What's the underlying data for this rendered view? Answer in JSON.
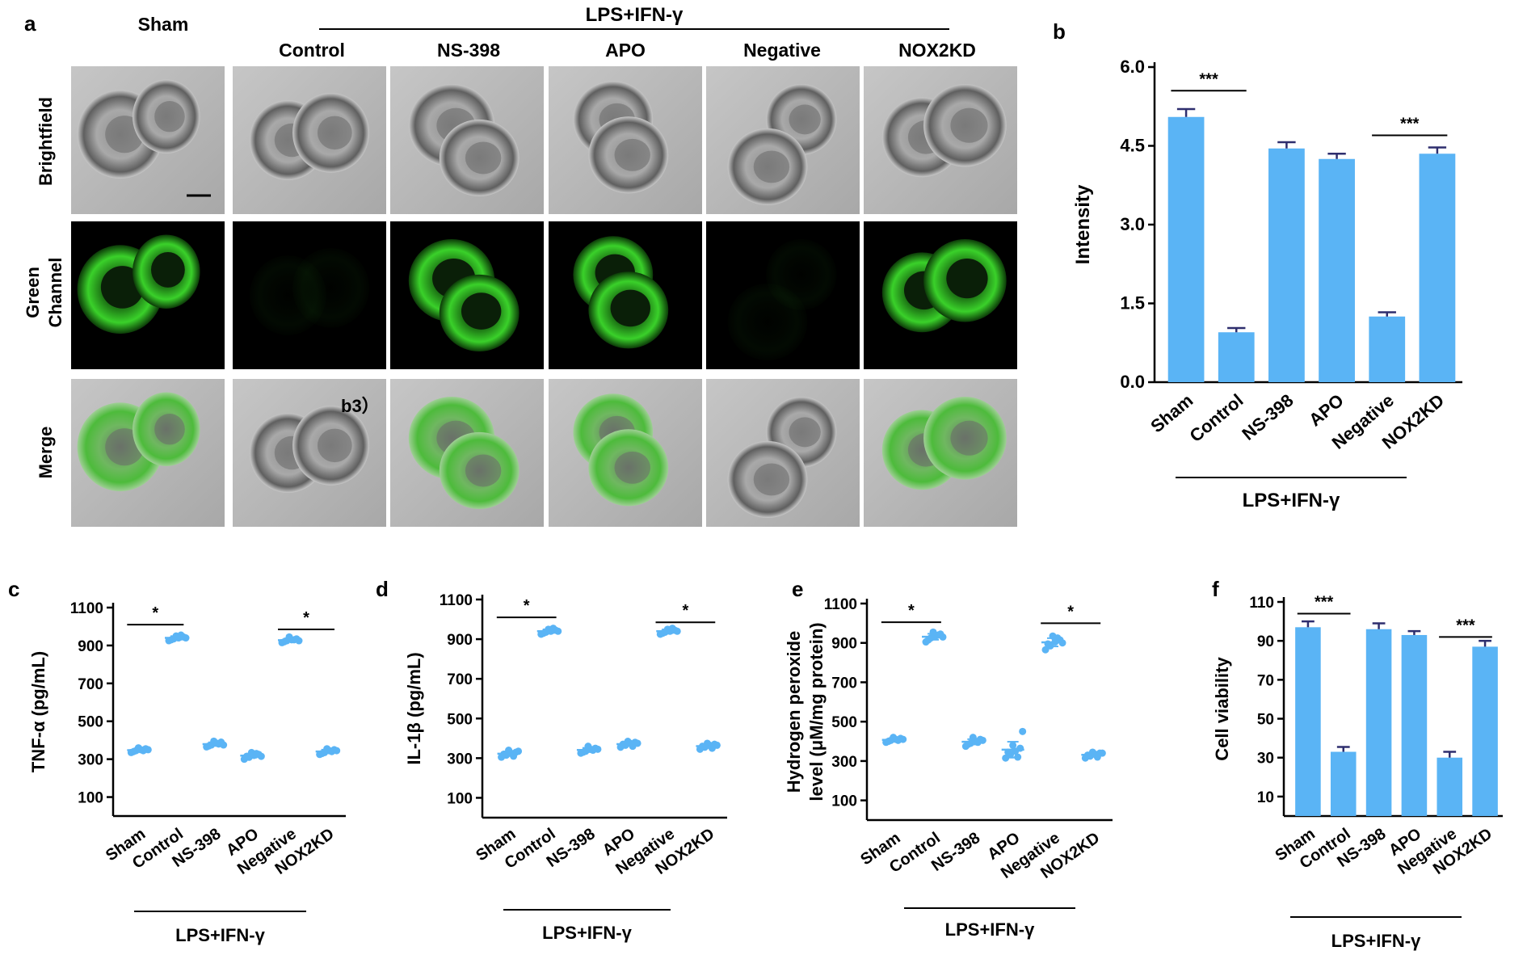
{
  "panel_a": {
    "letter": "a",
    "header": "LPS+IFN-γ",
    "columns": [
      "Sham",
      "Control",
      "NS-398",
      "APO",
      "Negative",
      "NOX2KD"
    ],
    "rows": [
      "Brightfield",
      [
        "Green",
        "Channel"
      ],
      "Merge"
    ],
    "cell_layout": [
      [
        [
          0.32,
          0.46,
          0.28,
          0.3
        ],
        [
          0.62,
          0.34,
          0.22,
          0.25
        ]
      ],
      [
        [
          0.36,
          0.5,
          0.25,
          0.27
        ],
        [
          0.64,
          0.45,
          0.25,
          0.27
        ]
      ],
      [
        [
          0.4,
          0.4,
          0.28,
          0.28
        ],
        [
          0.58,
          0.62,
          0.26,
          0.26
        ]
      ],
      [
        [
          0.42,
          0.36,
          0.26,
          0.26
        ],
        [
          0.52,
          0.6,
          0.26,
          0.26
        ]
      ],
      [
        [
          0.62,
          0.36,
          0.23,
          0.24
        ],
        [
          0.4,
          0.68,
          0.26,
          0.26
        ]
      ],
      [
        [
          0.38,
          0.48,
          0.26,
          0.27
        ],
        [
          0.66,
          0.4,
          0.27,
          0.28
        ]
      ]
    ],
    "green_on": [
      true,
      false,
      true,
      true,
      false,
      true
    ],
    "scale_bar": true,
    "annotation": "b3）",
    "colors": {
      "green": "#3ad12a",
      "bf_bg": "#b8b8b8",
      "dark": "#000000"
    }
  },
  "chart_data": [
    {
      "id": "b",
      "letter": "b",
      "type": "bar",
      "categories": [
        "Sham",
        "Control",
        "NS-398",
        "APO",
        "Negative",
        "NOX2KD"
      ],
      "values": [
        5.05,
        0.95,
        4.45,
        4.25,
        1.25,
        4.35
      ],
      "errors": [
        0.15,
        0.08,
        0.12,
        0.1,
        0.08,
        0.12
      ],
      "ylabel": "Intensity",
      "ylim": [
        0,
        6
      ],
      "yticks": [
        "0.0",
        "1.5",
        "3.0",
        "4.5",
        "6.0"
      ],
      "group_label": "LPS+IFN-γ",
      "sig": [
        {
          "from": 0,
          "to": 1,
          "label": "***",
          "y": 5.55
        },
        {
          "from": 4,
          "to": 5,
          "label": "***",
          "y": 4.7
        }
      ],
      "color": "#5ab4f5"
    },
    {
      "id": "c",
      "letter": "c",
      "type": "scatter",
      "categories": [
        "Sham",
        "Control",
        "NS-398",
        "APO",
        "Negative",
        "NOX2KD"
      ],
      "points": [
        [
          335,
          345,
          350,
          355,
          340,
          360,
          345,
          350
        ],
        [
          925,
          935,
          940,
          945,
          930,
          950,
          955,
          940
        ],
        [
          365,
          375,
          385,
          390,
          370,
          395,
          380,
          375
        ],
        [
          300,
          310,
          320,
          325,
          315,
          335,
          330,
          315
        ],
        [
          915,
          925,
          930,
          935,
          920,
          945,
          930,
          925
        ],
        [
          325,
          335,
          345,
          350,
          330,
          355,
          340,
          345
        ]
      ],
      "ylabel": "TNF-α (pg/mL)",
      "ylim": [
        0,
        1100
      ],
      "yticks": [
        "100",
        "300",
        "500",
        "700",
        "900",
        "1100"
      ],
      "group_label": "LPS+IFN-γ",
      "sig": [
        {
          "from": 0,
          "to": 1,
          "label": "*",
          "y": 1010
        },
        {
          "from": 4,
          "to": 5,
          "label": "*",
          "y": 985
        }
      ],
      "color": "#5ab4f5"
    },
    {
      "id": "d",
      "letter": "d",
      "type": "scatter",
      "categories": [
        "Sham",
        "Control",
        "NS-398",
        "APO",
        "Negative",
        "NOX2KD"
      ],
      "points": [
        [
          305,
          315,
          325,
          330,
          320,
          340,
          310,
          335
        ],
        [
          925,
          935,
          940,
          945,
          930,
          950,
          955,
          940
        ],
        [
          325,
          335,
          345,
          350,
          330,
          360,
          340,
          345
        ],
        [
          355,
          365,
          375,
          380,
          370,
          385,
          360,
          375
        ],
        [
          925,
          935,
          940,
          945,
          930,
          950,
          955,
          940
        ],
        [
          345,
          355,
          365,
          370,
          360,
          375,
          350,
          365
        ]
      ],
      "ylabel": "IL-1β (pg/mL)",
      "ylim": [
        0,
        1100
      ],
      "yticks": [
        "100",
        "300",
        "500",
        "700",
        "900",
        "1100"
      ],
      "group_label": "LPS+IFN-γ",
      "sig": [
        {
          "from": 0,
          "to": 1,
          "label": "*",
          "y": 1010
        },
        {
          "from": 4,
          "to": 5,
          "label": "*",
          "y": 985
        }
      ],
      "color": "#5ab4f5"
    },
    {
      "id": "e",
      "letter": "e",
      "type": "scatter",
      "categories": [
        "Sham",
        "Control",
        "NS-398",
        "APO",
        "Negative",
        "NOX2KD"
      ],
      "points": [
        [
          395,
          405,
          410,
          415,
          400,
          420,
          405,
          410
        ],
        [
          905,
          925,
          935,
          945,
          915,
          955,
          940,
          930
        ],
        [
          375,
          390,
          400,
          410,
          385,
          420,
          395,
          405
        ],
        [
          315,
          335,
          350,
          365,
          345,
          380,
          320,
          450
        ],
        [
          865,
          885,
          905,
          915,
          895,
          935,
          925,
          900
        ],
        [
          315,
          325,
          335,
          340,
          330,
          345,
          320,
          340
        ]
      ],
      "ylabel": [
        "Hydrogen peroxide",
        "level (μM/mg protein)"
      ],
      "ylim": [
        0,
        1100
      ],
      "yticks": [
        "100",
        "300",
        "500",
        "700",
        "900",
        "1100"
      ],
      "group_label": "LPS+IFN-γ",
      "sig": [
        {
          "from": 0,
          "to": 1,
          "label": "*",
          "y": 1005
        },
        {
          "from": 4,
          "to": 5,
          "label": "*",
          "y": 1000
        }
      ],
      "color": "#5ab4f5"
    },
    {
      "id": "f",
      "letter": "f",
      "type": "bar",
      "categories": [
        "Sham",
        "Control",
        "NS-398",
        "APO",
        "Negative",
        "NOX2KD"
      ],
      "values": [
        97,
        33,
        96,
        93,
        30,
        87
      ],
      "errors": [
        3,
        2.5,
        3,
        2,
        3,
        3
      ],
      "ylabel": "Cell viability",
      "ylim": [
        0,
        110
      ],
      "yticks": [
        "10",
        "30",
        "50",
        "70",
        "90",
        "110"
      ],
      "group_label": "LPS+IFN-γ",
      "sig": [
        {
          "from": 0,
          "to": 1,
          "label": "***",
          "y": 104
        },
        {
          "from": 4,
          "to": 5,
          "label": "***",
          "y": 92
        }
      ],
      "color": "#5ab4f5"
    }
  ]
}
